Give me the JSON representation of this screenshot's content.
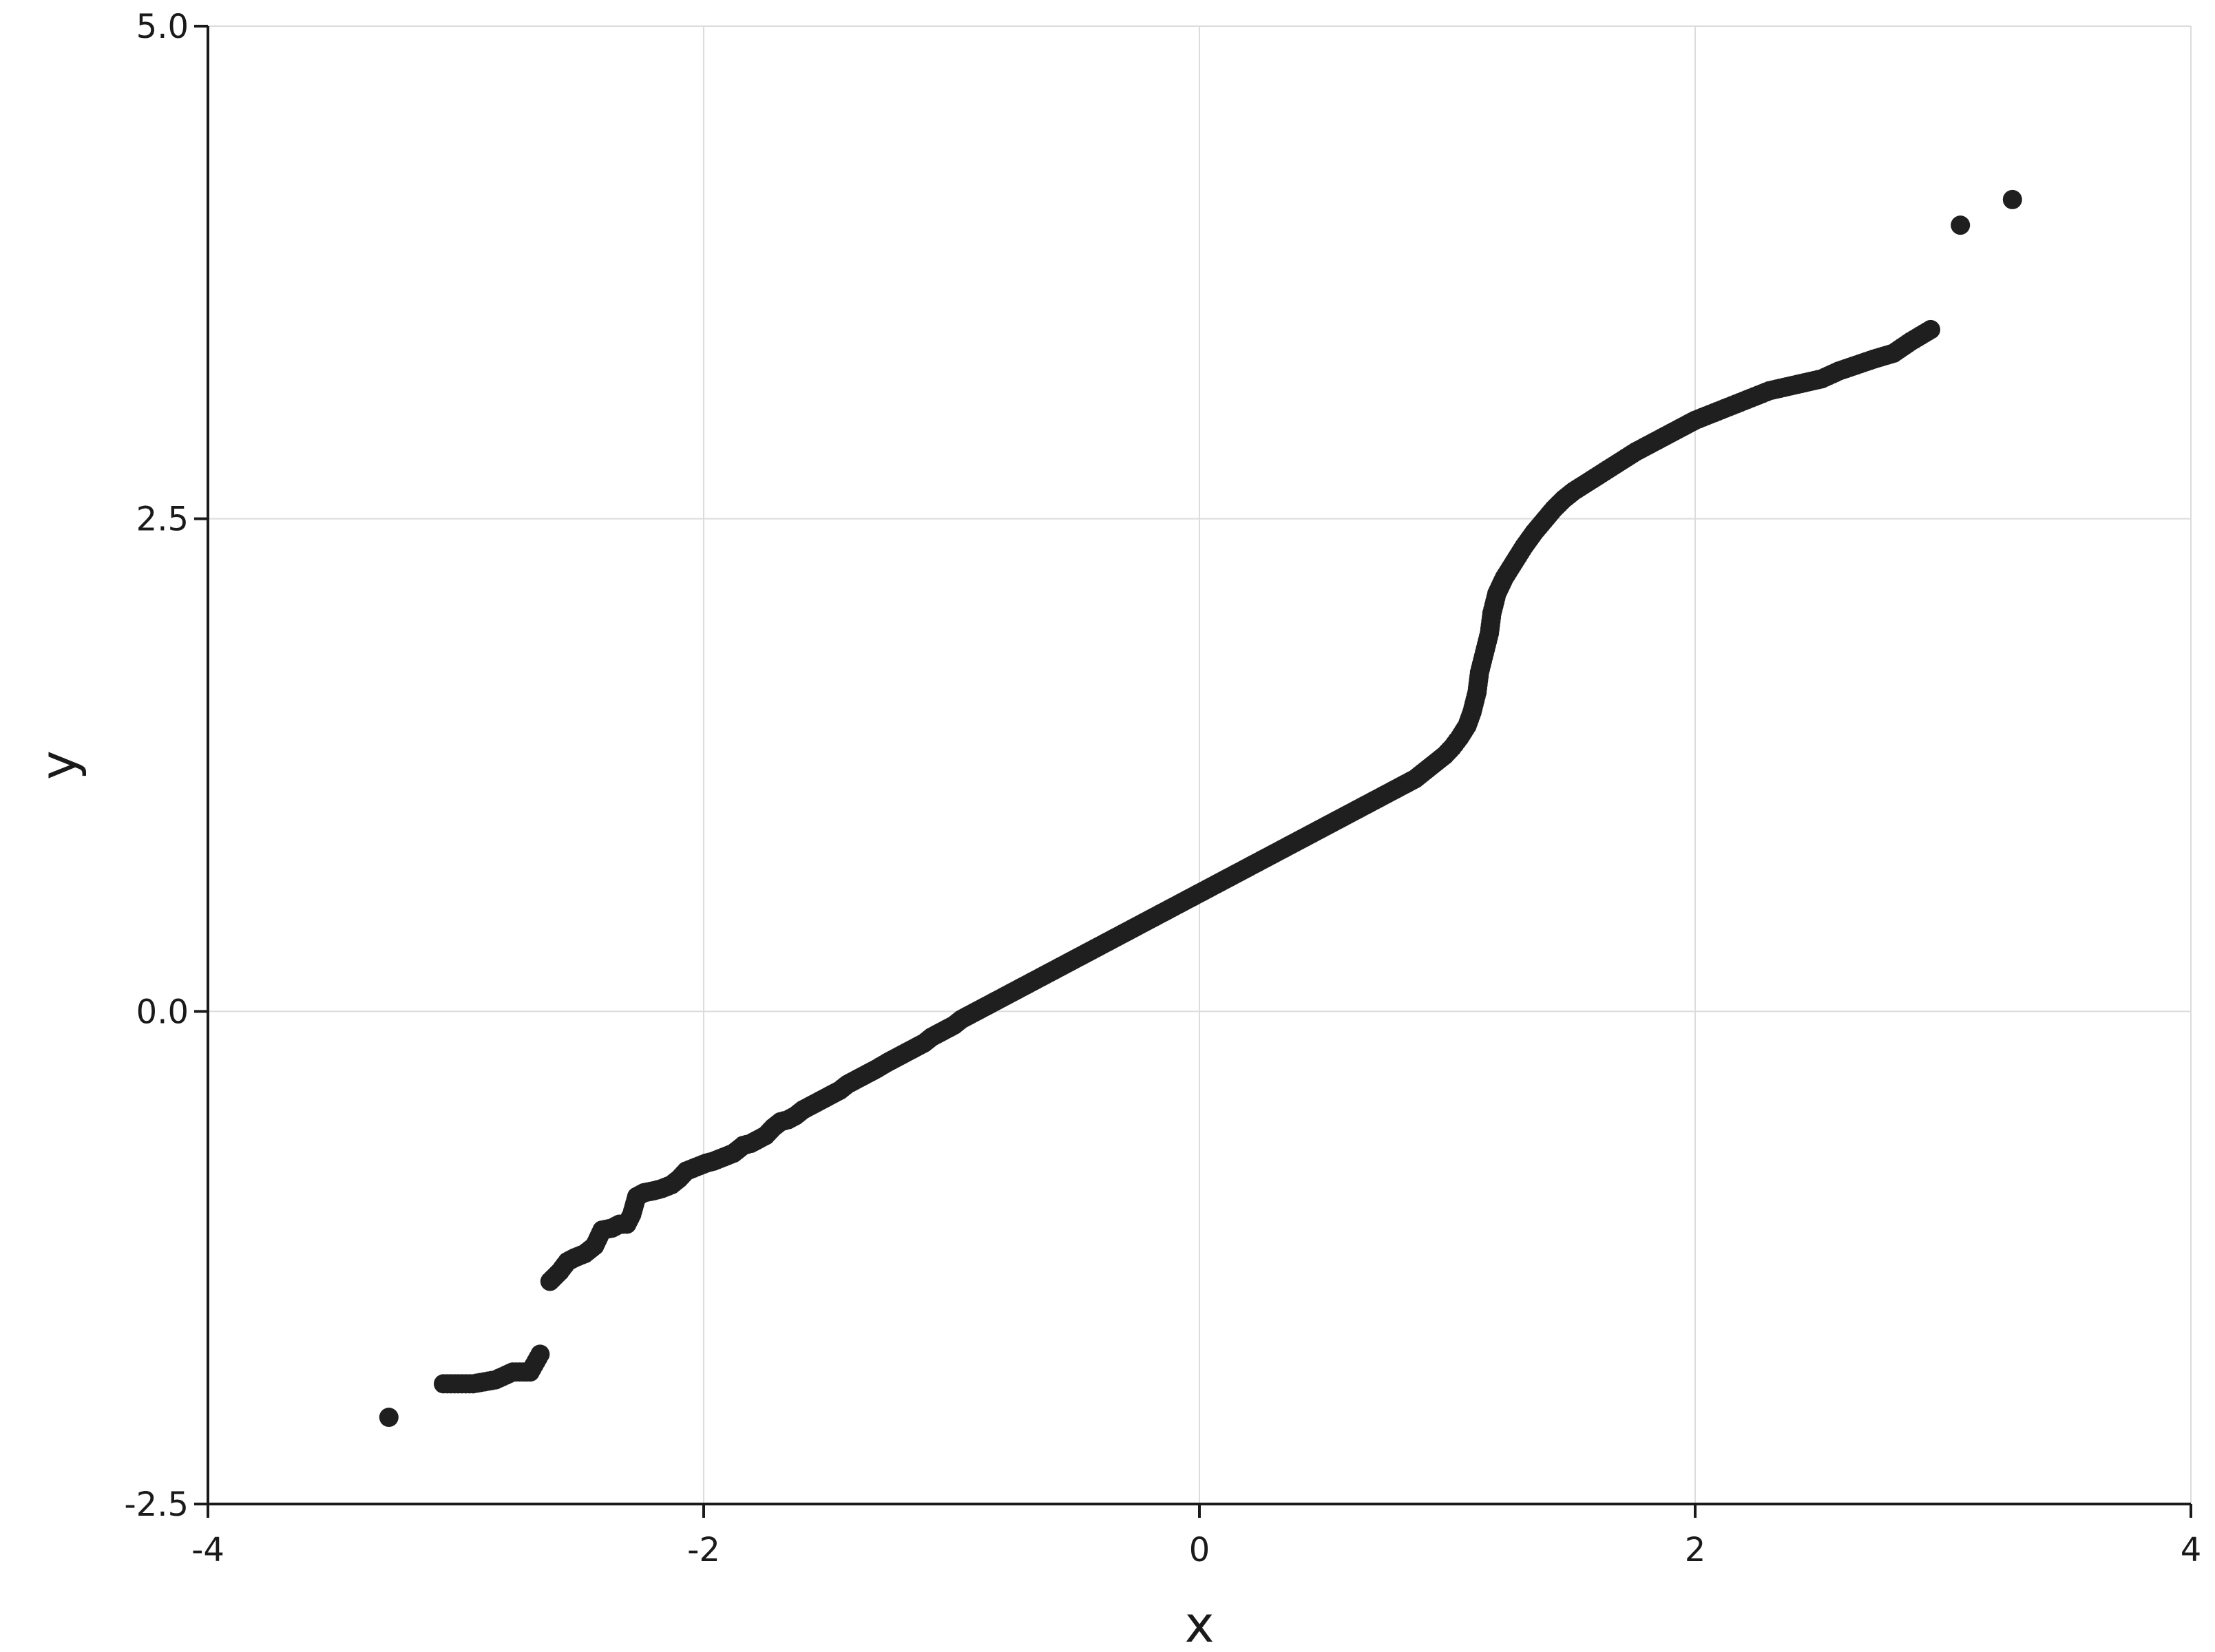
{
  "chart_data": {
    "type": "scatter",
    "xlabel": "x",
    "ylabel": "y",
    "xlim": [
      -4,
      4
    ],
    "ylim": [
      -2.5,
      5.0
    ],
    "x_ticks": [
      -4,
      -2,
      0,
      2,
      4
    ],
    "x_tick_labels": [
      "-4",
      "-2",
      "0",
      "2",
      "4"
    ],
    "y_ticks": [
      -2.5,
      0.0,
      2.5,
      5.0
    ],
    "y_tick_labels": [
      "-2.5",
      "0.0",
      "2.5",
      "5.0"
    ],
    "grid": true,
    "marker_color": "#1f1f1f",
    "points": [
      [
        -3.27,
        -2.06
      ],
      [
        -3.05,
        -1.89
      ],
      [
        -2.93,
        -1.89
      ],
      [
        -2.84,
        -1.87
      ],
      [
        -2.77,
        -1.83
      ],
      [
        -2.7,
        -1.83
      ],
      [
        -2.66,
        -1.74
      ],
      [
        -2.62,
        -1.37
      ],
      [
        -2.58,
        -1.32
      ],
      [
        -2.55,
        -1.27
      ],
      [
        -2.52,
        -1.25
      ],
      [
        -2.48,
        -1.23
      ],
      [
        -2.44,
        -1.19
      ],
      [
        -2.41,
        -1.11
      ],
      [
        -2.37,
        -1.1
      ],
      [
        -2.34,
        -1.08
      ],
      [
        -2.31,
        -1.08
      ],
      [
        -2.29,
        -1.03
      ],
      [
        -2.27,
        -0.94
      ],
      [
        -2.24,
        -0.92
      ],
      [
        -2.2,
        -0.91
      ],
      [
        -2.17,
        -0.9
      ],
      [
        -2.13,
        -0.88
      ],
      [
        -2.1,
        -0.85
      ],
      [
        -2.07,
        -0.81
      ],
      [
        -2.03,
        -0.79
      ],
      [
        -1.99,
        -0.77
      ],
      [
        -1.96,
        -0.76
      ],
      [
        -1.92,
        -0.74
      ],
      [
        -1.88,
        -0.72
      ],
      [
        -1.84,
        -0.68
      ],
      [
        -1.81,
        -0.67
      ],
      [
        -1.78,
        -0.65
      ],
      [
        -1.75,
        -0.63
      ],
      [
        -1.72,
        -0.59
      ],
      [
        -1.69,
        -0.56
      ],
      [
        -1.66,
        -0.55
      ],
      [
        -1.63,
        -0.53
      ],
      [
        -1.6,
        -0.5
      ],
      [
        -1.57,
        -0.48
      ],
      [
        -1.54,
        -0.46
      ],
      [
        -1.51,
        -0.44
      ],
      [
        -1.48,
        -0.42
      ],
      [
        -1.45,
        -0.4
      ],
      [
        -1.42,
        -0.37
      ],
      [
        -1.39,
        -0.35
      ],
      [
        -1.36,
        -0.33
      ],
      [
        -1.33,
        -0.31
      ],
      [
        -1.3,
        -0.29
      ],
      [
        -1.26,
        -0.26
      ],
      [
        -1.23,
        -0.24
      ],
      [
        -1.2,
        -0.22
      ],
      [
        -1.17,
        -0.2
      ],
      [
        -1.14,
        -0.18
      ],
      [
        -1.11,
        -0.16
      ],
      [
        -1.08,
        -0.13
      ],
      [
        -1.05,
        -0.11
      ],
      [
        -1.02,
        -0.09
      ],
      [
        -0.99,
        -0.07
      ],
      [
        -0.96,
        -0.04
      ],
      [
        -0.93,
        -0.02
      ],
      [
        -0.9,
        0.0
      ],
      [
        -0.87,
        0.02
      ],
      [
        -0.84,
        0.04
      ],
      [
        -0.81,
        0.06
      ],
      [
        -0.78,
        0.08
      ],
      [
        -0.75,
        0.1
      ],
      [
        -0.72,
        0.12
      ],
      [
        -0.69,
        0.14
      ],
      [
        -0.66,
        0.16
      ],
      [
        -0.63,
        0.18
      ],
      [
        -0.6,
        0.2
      ],
      [
        -0.57,
        0.22
      ],
      [
        -0.54,
        0.24
      ],
      [
        -0.51,
        0.26
      ],
      [
        -0.48,
        0.28
      ],
      [
        -0.45,
        0.3
      ],
      [
        -0.42,
        0.32
      ],
      [
        -0.39,
        0.34
      ],
      [
        -0.36,
        0.36
      ],
      [
        -0.33,
        0.38
      ],
      [
        -0.3,
        0.4
      ],
      [
        -0.27,
        0.42
      ],
      [
        -0.24,
        0.44
      ],
      [
        -0.21,
        0.46
      ],
      [
        -0.18,
        0.48
      ],
      [
        -0.15,
        0.5
      ],
      [
        -0.12,
        0.52
      ],
      [
        -0.09,
        0.54
      ],
      [
        -0.06,
        0.56
      ],
      [
        -0.03,
        0.58
      ],
      [
        0.0,
        0.6
      ],
      [
        0.03,
        0.62
      ],
      [
        0.06,
        0.64
      ],
      [
        0.09,
        0.66
      ],
      [
        0.12,
        0.68
      ],
      [
        0.15,
        0.7
      ],
      [
        0.18,
        0.72
      ],
      [
        0.21,
        0.74
      ],
      [
        0.24,
        0.76
      ],
      [
        0.27,
        0.78
      ],
      [
        0.3,
        0.8
      ],
      [
        0.33,
        0.82
      ],
      [
        0.36,
        0.84
      ],
      [
        0.39,
        0.86
      ],
      [
        0.42,
        0.88
      ],
      [
        0.45,
        0.9
      ],
      [
        0.48,
        0.92
      ],
      [
        0.51,
        0.94
      ],
      [
        0.54,
        0.96
      ],
      [
        0.57,
        0.98
      ],
      [
        0.6,
        1.0
      ],
      [
        0.63,
        1.02
      ],
      [
        0.66,
        1.04
      ],
      [
        0.69,
        1.06
      ],
      [
        0.72,
        1.08
      ],
      [
        0.75,
        1.1
      ],
      [
        0.78,
        1.12
      ],
      [
        0.81,
        1.14
      ],
      [
        0.84,
        1.16
      ],
      [
        0.87,
        1.18
      ],
      [
        0.9,
        1.21
      ],
      [
        0.93,
        1.24
      ],
      [
        0.96,
        1.27
      ],
      [
        0.99,
        1.3
      ],
      [
        1.02,
        1.34
      ],
      [
        1.05,
        1.39
      ],
      [
        1.08,
        1.45
      ],
      [
        1.1,
        1.52
      ],
      [
        1.12,
        1.62
      ],
      [
        1.13,
        1.72
      ],
      [
        1.15,
        1.82
      ],
      [
        1.17,
        1.92
      ],
      [
        1.18,
        2.02
      ],
      [
        1.2,
        2.12
      ],
      [
        1.23,
        2.2
      ],
      [
        1.27,
        2.28
      ],
      [
        1.31,
        2.36
      ],
      [
        1.35,
        2.43
      ],
      [
        1.39,
        2.49
      ],
      [
        1.43,
        2.55
      ],
      [
        1.47,
        2.6
      ],
      [
        1.51,
        2.64
      ],
      [
        1.56,
        2.68
      ],
      [
        1.61,
        2.72
      ],
      [
        1.66,
        2.76
      ],
      [
        1.71,
        2.8
      ],
      [
        1.76,
        2.84
      ],
      [
        1.82,
        2.88
      ],
      [
        1.88,
        2.92
      ],
      [
        1.94,
        2.96
      ],
      [
        2.0,
        3.0
      ],
      [
        2.06,
        3.03
      ],
      [
        2.12,
        3.06
      ],
      [
        2.18,
        3.09
      ],
      [
        2.24,
        3.12
      ],
      [
        2.3,
        3.15
      ],
      [
        2.37,
        3.17
      ],
      [
        2.44,
        3.19
      ],
      [
        2.51,
        3.21
      ],
      [
        2.58,
        3.25
      ],
      [
        2.65,
        3.28
      ],
      [
        2.72,
        3.31
      ],
      [
        2.8,
        3.34
      ],
      [
        2.87,
        3.4
      ],
      [
        2.95,
        3.46
      ],
      [
        3.07,
        3.99
      ],
      [
        3.28,
        4.12
      ]
    ]
  }
}
